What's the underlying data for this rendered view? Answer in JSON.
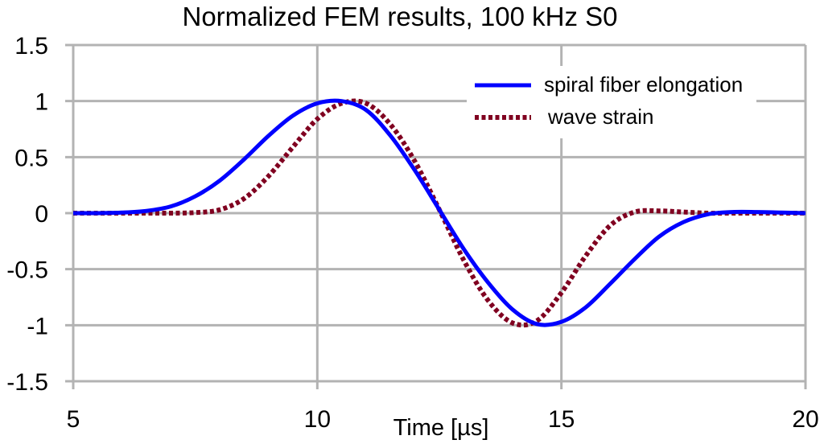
{
  "chart_data": {
    "type": "line",
    "title": "Normalized FEM results, 100 kHz S0",
    "xlabel": "Time [µs]",
    "ylabel": "",
    "xlim": [
      5,
      20
    ],
    "ylim": [
      -1.5,
      1.5
    ],
    "xticks": [
      5,
      10,
      15,
      20
    ],
    "xtick_labels": [
      "5",
      "10",
      "15",
      "20"
    ],
    "yticks": [
      1.5,
      1,
      0.5,
      0,
      -0.5,
      -1,
      -1.5
    ],
    "ytick_labels": [
      "1.5",
      "1",
      "0.5",
      "0",
      "-0.5",
      "-1",
      "-1.5"
    ],
    "grid": true,
    "legend_position": "top-right",
    "series": [
      {
        "name": "spiral fiber elongation",
        "color": "#0000ff",
        "style": "solid",
        "x": [
          5,
          5.5,
          6,
          6.5,
          7,
          7.5,
          8,
          8.5,
          9,
          9.5,
          10,
          10.5,
          11,
          11.5,
          12,
          12.5,
          13,
          13.5,
          14,
          14.5,
          15,
          15.5,
          16,
          16.5,
          17,
          17.5,
          18,
          18.5,
          19,
          19.5,
          20
        ],
        "y": [
          0,
          0,
          0.005,
          0.02,
          0.06,
          0.15,
          0.29,
          0.48,
          0.69,
          0.87,
          0.98,
          1.0,
          0.92,
          0.69,
          0.38,
          0.03,
          -0.32,
          -0.62,
          -0.86,
          -0.99,
          -0.97,
          -0.84,
          -0.63,
          -0.41,
          -0.21,
          -0.08,
          -0.01,
          0.01,
          0.01,
          0.005,
          0.0
        ]
      },
      {
        "name": "wave strain",
        "color": "#800020",
        "style": "dotted",
        "x": [
          5,
          5.5,
          6,
          6.5,
          7,
          7.5,
          8,
          8.5,
          9,
          9.5,
          10,
          10.5,
          11,
          11.5,
          12,
          12.5,
          13,
          13.5,
          14,
          14.5,
          15,
          15.5,
          16,
          16.5,
          17,
          17.5,
          18,
          18.5,
          19,
          19.5,
          20
        ],
        "y": [
          0,
          0,
          0,
          0,
          0,
          0.005,
          0.03,
          0.13,
          0.33,
          0.59,
          0.84,
          0.98,
          0.98,
          0.79,
          0.46,
          0.03,
          -0.42,
          -0.78,
          -0.98,
          -0.96,
          -0.71,
          -0.38,
          -0.11,
          0.01,
          0.02,
          0.01,
          0.0,
          0.0,
          0,
          0,
          0
        ]
      }
    ]
  }
}
